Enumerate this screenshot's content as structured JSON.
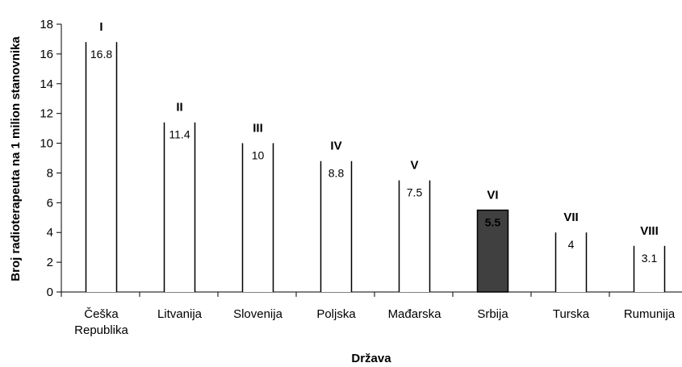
{
  "chart_data": {
    "type": "bar",
    "categories": [
      [
        "Češka",
        "Republika"
      ],
      [
        "Litvanija"
      ],
      [
        "Slovenija"
      ],
      [
        "Poljska"
      ],
      [
        "Mađarska"
      ],
      [
        "Srbija"
      ],
      [
        "Turska"
      ],
      [
        "Rumunija"
      ]
    ],
    "values": [
      16.8,
      11.4,
      10,
      8.8,
      7.5,
      5.5,
      4,
      3.1
    ],
    "value_labels": [
      "16.8",
      "11.4",
      "10",
      "8.8",
      "7.5",
      "5.5",
      "4",
      "3.1"
    ],
    "ranks": [
      "I",
      "II",
      "III",
      "IV",
      "V",
      "VI",
      "VII",
      "VIII"
    ],
    "highlight_index": 5,
    "xlabel": "Država",
    "ylabel": "Broj radioterapeuta na 1 milion stanovnika",
    "ylim": [
      0,
      18
    ],
    "yticks": [
      0,
      2,
      4,
      6,
      8,
      10,
      12,
      14,
      16,
      18
    ],
    "grid": false,
    "colors": {
      "bar": "#ffffff",
      "highlight": "#404040",
      "stroke": "#000000"
    }
  }
}
